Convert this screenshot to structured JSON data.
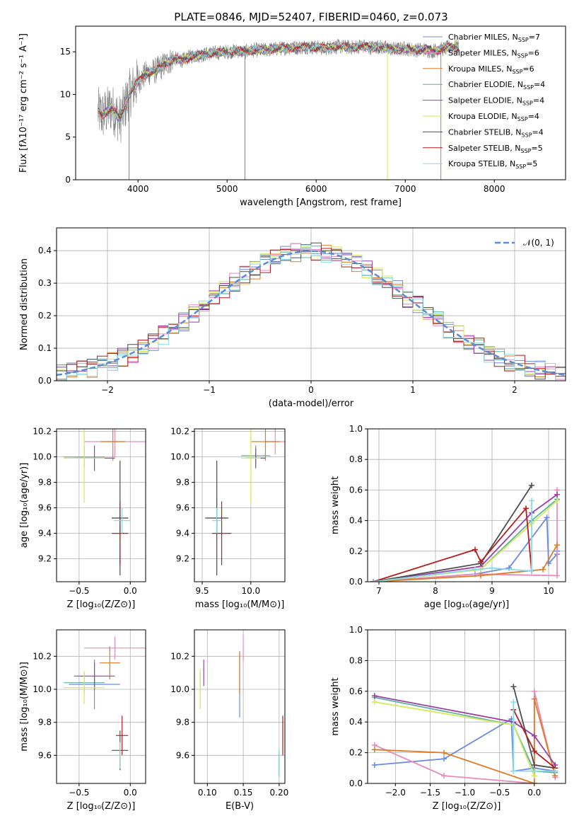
{
  "figure": {
    "title": "PLATE=0846, MJD=52407, FIBERID=0460, z=0.073"
  },
  "colors": {
    "chabrier_miles": "#6a8bdc",
    "salpeter_miles": "#e98abd",
    "kroupa_miles": "#e07a22",
    "chabrier_elodie": "#5fb0a0",
    "salpeter_elodie": "#9a3fa8",
    "kroupa_elodie": "#d2ea5a",
    "chabrier_stelib": "#4d4d4d",
    "salpeter_stelib": "#b51c1c",
    "kroupa_stelib": "#88dbe4",
    "data": "#808080"
  },
  "chart_data": [
    {
      "id": "spectrum",
      "type": "line",
      "title": "PLATE=0846, MJD=52407, FIBERID=0460, z=0.073",
      "xlabel": "wavelength [Angstrom, rest frame]",
      "ylabel": "Flux [fλ10⁻¹⁷ erg cm⁻² s⁻¹ A⁻¹]",
      "xlim": [
        3300,
        8800
      ],
      "ylim": [
        0,
        18
      ],
      "xticks": [
        4000,
        5000,
        6000,
        7000,
        8000
      ],
      "yticks": [
        0,
        5,
        10,
        15
      ],
      "grid": false,
      "legend_position": "right",
      "legend": [
        {
          "key": "chabrier_miles",
          "label": "Chabrier MILES, N",
          "sub": "SSP",
          "suffix": "=7"
        },
        {
          "key": "salpeter_miles",
          "label": "Salpeter MILES, N",
          "sub": "SSP",
          "suffix": "=6"
        },
        {
          "key": "kroupa_miles",
          "label": "Kroupa MILES, N",
          "sub": "SSP",
          "suffix": "=6"
        },
        {
          "key": "chabrier_elodie",
          "label": "Chabrier ELODIE, N",
          "sub": "SSP",
          "suffix": "=4"
        },
        {
          "key": "salpeter_elodie",
          "label": "Salpeter ELODIE, N",
          "sub": "SSP",
          "suffix": "=4"
        },
        {
          "key": "kroupa_elodie",
          "label": "Kroupa ELODIE, N",
          "sub": "SSP",
          "suffix": "=4"
        },
        {
          "key": "chabrier_stelib",
          "label": "Chabrier STELIB, N",
          "sub": "SSP",
          "suffix": "=4"
        },
        {
          "key": "salpeter_stelib",
          "label": "Salpeter STELIB, N",
          "sub": "SSP",
          "suffix": "=5"
        },
        {
          "key": "kroupa_stelib",
          "label": "Kroupa STELIB, N",
          "sub": "SSP",
          "suffix": "=5"
        }
      ],
      "data_curve": {
        "x": [
          3550,
          3600,
          3700,
          3800,
          3900,
          4000,
          4100,
          4200,
          4300,
          4400,
          4500,
          4600,
          4700,
          4800,
          4900,
          5000,
          5100,
          5200,
          5300,
          5400,
          5500,
          5600,
          5700,
          5800,
          5900,
          6000,
          6100,
          6200,
          6300,
          6400,
          6500,
          6600,
          6700,
          6800,
          6900,
          7000,
          7100,
          7200,
          7300,
          7400,
          7500,
          7600
        ],
        "y": [
          8.0,
          7.5,
          8.5,
          7.0,
          10.0,
          11.5,
          12.5,
          12.8,
          13.5,
          14.2,
          14.0,
          14.5,
          14.6,
          14.8,
          14.9,
          15.0,
          15.1,
          15.0,
          15.2,
          15.2,
          15.3,
          15.4,
          15.5,
          15.5,
          15.6,
          15.5,
          15.4,
          15.6,
          15.6,
          15.5,
          15.7,
          15.5,
          15.6,
          15.4,
          15.3,
          15.4,
          15.2,
          15.3,
          15.1,
          15.3,
          15.5,
          15.6
        ]
      },
      "dips": [
        {
          "x": 3900,
          "y": 0
        },
        {
          "x": 5200,
          "y": 0
        },
        {
          "x": 6800,
          "y": 0
        },
        {
          "x": 7400,
          "y": 0
        }
      ]
    },
    {
      "id": "residuals",
      "type": "area",
      "xlabel": "(data-model)/error",
      "ylabel": "Normed distribution",
      "xlim": [
        -2.5,
        2.5
      ],
      "ylim": [
        0,
        0.47
      ],
      "xticks": [
        -2,
        -1,
        0,
        1,
        2
      ],
      "yticks": [
        0.0,
        0.1,
        0.2,
        0.3,
        0.4
      ],
      "grid": true,
      "legend_position": "upper-right",
      "legend": [
        {
          "key": "normal",
          "label": "𝒩(0, 1)"
        }
      ],
      "normal_color": "#5b8bd6"
    },
    {
      "id": "age-vs-Z",
      "type": "scatter",
      "xlabel": "Z [log₁₀(Z/Z⊙)]",
      "ylabel": "age  [log₁₀(age/yr)]",
      "xlim": [
        -0.72,
        0.15
      ],
      "ylim": [
        9.02,
        10.22
      ],
      "xticks": [
        -0.5,
        0.0
      ],
      "yticks": [
        9.2,
        9.4,
        9.6,
        9.8,
        10.0,
        10.2
      ],
      "grid": true,
      "points": [
        {
          "key": "chabrier_miles",
          "x": -0.1,
          "y": 9.52,
          "xerr": 0.08,
          "yerr": 0.1
        },
        {
          "key": "salpeter_miles",
          "x": -0.15,
          "y": 10.12,
          "xerr": 0.3,
          "yerr": 0.12
        },
        {
          "key": "kroupa_miles",
          "x": -0.17,
          "y": 10.12,
          "xerr": 0.12,
          "yerr": 0.15
        },
        {
          "key": "chabrier_elodie",
          "x": -0.45,
          "y": 10.0,
          "xerr": 0.2,
          "yerr": 0.08
        },
        {
          "key": "salpeter_elodie",
          "x": -0.35,
          "y": 9.99,
          "xerr": 0.2,
          "yerr": 0.1
        },
        {
          "key": "kroupa_elodie",
          "x": -0.45,
          "y": 9.99,
          "xerr": 0.2,
          "yerr": 0.35
        },
        {
          "key": "chabrier_stelib",
          "x": -0.1,
          "y": 9.52,
          "xerr": 0.08,
          "yerr": 0.45
        },
        {
          "key": "salpeter_stelib",
          "x": -0.1,
          "y": 9.4,
          "xerr": 0.08,
          "yerr": 0.25
        },
        {
          "key": "kroupa_stelib",
          "x": -0.08,
          "y": 9.5,
          "xerr": 0.08,
          "yerr": 0.1
        }
      ]
    },
    {
      "id": "age-vs-mass",
      "type": "scatter",
      "xlabel": "mass [log₁₀(M/M⊙)]",
      "ylabel": "",
      "xlim": [
        9.42,
        10.35
      ],
      "ylim": [
        9.02,
        10.22
      ],
      "xticks": [
        9.5,
        10.0
      ],
      "yticks": [
        9.2,
        9.4,
        9.6,
        9.8,
        10.0,
        10.2
      ],
      "grid": true,
      "points": [
        {
          "key": "chabrier_miles",
          "x": 9.65,
          "y": 9.52,
          "xerr": 0.1,
          "yerr": 0.15
        },
        {
          "key": "salpeter_miles",
          "x": 10.25,
          "y": 10.12,
          "xerr": 0.1,
          "yerr": 0.1
        },
        {
          "key": "kroupa_miles",
          "x": 10.15,
          "y": 10.12,
          "xerr": 0.15,
          "yerr": 0.15
        },
        {
          "key": "chabrier_elodie",
          "x": 10.05,
          "y": 10.01,
          "xerr": 0.15,
          "yerr": 0.08
        },
        {
          "key": "salpeter_elodie",
          "x": 10.05,
          "y": 9.99,
          "xerr": 0.1,
          "yerr": 0.08
        },
        {
          "key": "kroupa_elodie",
          "x": 10.0,
          "y": 9.99,
          "xerr": 0.1,
          "yerr": 0.35
        },
        {
          "key": "chabrier_stelib",
          "x": 9.65,
          "y": 9.52,
          "xerr": 0.12,
          "yerr": 0.45
        },
        {
          "key": "salpeter_stelib",
          "x": 9.7,
          "y": 9.4,
          "xerr": 0.1,
          "yerr": 0.25
        },
        {
          "key": "kroupa_stelib",
          "x": 9.65,
          "y": 9.5,
          "xerr": 0.05,
          "yerr": 0.1
        }
      ]
    },
    {
      "id": "weight-vs-age",
      "type": "line",
      "xlabel": "age  [log₁₀(age/yr)]",
      "ylabel": "mass weight",
      "xlim": [
        6.8,
        10.3
      ],
      "ylim": [
        0,
        1
      ],
      "xticks": [
        7,
        8,
        9,
        10
      ],
      "yticks": [
        0.0,
        0.2,
        0.4,
        0.6,
        0.8,
        1.0
      ],
      "grid": true,
      "series": [
        {
          "key": "chabrier_miles",
          "x": [
            6.9,
            8.7,
            9.3,
            9.97,
            10.0,
            10.15,
            10.15
          ],
          "y": [
            0.0,
            0.05,
            0.09,
            0.42,
            0.12,
            0.18,
            0.2
          ]
        },
        {
          "key": "salpeter_miles",
          "x": [
            6.9,
            8.7,
            10.15,
            10.15
          ],
          "y": [
            0.0,
            0.05,
            0.04,
            0.6
          ]
        },
        {
          "key": "kroupa_miles",
          "x": [
            6.9,
            8.8,
            9.9,
            10.15
          ],
          "y": [
            0.0,
            0.04,
            0.08,
            0.24
          ]
        },
        {
          "key": "chabrier_elodie",
          "x": [
            6.9,
            8.8,
            9.7,
            10.15
          ],
          "y": [
            0.0,
            0.08,
            0.4,
            0.54
          ]
        },
        {
          "key": "salpeter_elodie",
          "x": [
            6.9,
            8.8,
            9.7,
            10.15
          ],
          "y": [
            0.0,
            0.1,
            0.45,
            0.57
          ]
        },
        {
          "key": "kroupa_elodie",
          "x": [
            6.9,
            8.8,
            9.7,
            10.15
          ],
          "y": [
            0.0,
            0.08,
            0.38,
            0.53
          ]
        },
        {
          "key": "chabrier_stelib",
          "x": [
            6.9,
            8.8,
            9.7
          ],
          "y": [
            0.0,
            0.12,
            0.63
          ]
        },
        {
          "key": "salpeter_stelib",
          "x": [
            6.9,
            8.7,
            8.8,
            9.6,
            9.7
          ],
          "y": [
            0.0,
            0.21,
            0.13,
            0.48,
            0.07
          ]
        },
        {
          "key": "kroupa_stelib",
          "x": [
            6.9,
            8.7,
            9.0,
            9.7,
            9.7
          ],
          "y": [
            0.0,
            0.08,
            0.09,
            0.07,
            0.53
          ]
        }
      ]
    },
    {
      "id": "mass-vs-Z",
      "type": "scatter",
      "xlabel": "Z [log₁₀(Z/Z⊙)]",
      "ylabel": "mass [log₁₀(M/M⊙)]",
      "xlim": [
        -0.72,
        0.15
      ],
      "ylim": [
        9.43,
        10.36
      ],
      "xticks": [
        -0.5,
        0.0
      ],
      "yticks": [
        9.6,
        9.8,
        10.0,
        10.2
      ],
      "grid": true,
      "points": [
        {
          "key": "chabrier_miles",
          "x": -0.35,
          "y": 10.03,
          "xerr": 0.25,
          "yerr": 0.15
        },
        {
          "key": "salpeter_miles",
          "x": -0.15,
          "y": 10.25,
          "xerr": 0.3,
          "yerr": 0.07
        },
        {
          "key": "kroupa_miles",
          "x": -0.2,
          "y": 10.16,
          "xerr": 0.1,
          "yerr": 0.1
        },
        {
          "key": "chabrier_elodie",
          "x": -0.45,
          "y": 10.04,
          "xerr": 0.2,
          "yerr": 0.06
        },
        {
          "key": "salpeter_elodie",
          "x": -0.35,
          "y": 10.08,
          "xerr": 0.2,
          "yerr": 0.08
        },
        {
          "key": "kroupa_elodie",
          "x": -0.45,
          "y": 10.01,
          "xerr": 0.2,
          "yerr": 0.1
        },
        {
          "key": "chabrier_stelib",
          "x": -0.1,
          "y": 9.63,
          "xerr": 0.08,
          "yerr": 0.12
        },
        {
          "key": "salpeter_stelib",
          "x": -0.08,
          "y": 9.72,
          "xerr": 0.06,
          "yerr": 0.12
        },
        {
          "key": "kroupa_stelib",
          "x": -0.1,
          "y": 9.6,
          "xerr": 0.06,
          "yerr": 0.08
        }
      ]
    },
    {
      "id": "mass-vs-ebv",
      "type": "scatter",
      "xlabel": "E(B-V)",
      "ylabel": "",
      "xlim": [
        0.082,
        0.208
      ],
      "ylim": [
        9.43,
        10.36
      ],
      "xticks": [
        0.1,
        0.15,
        0.2
      ],
      "xtick_labels": [
        "0.10",
        "0.15",
        "0.20"
      ],
      "yticks": [
        9.6,
        9.8,
        10.0,
        10.2
      ],
      "grid": true,
      "points": [
        {
          "key": "chabrier_miles",
          "x": 0.145,
          "y": 10.03,
          "xerr": 0.0,
          "yerr": 0.2
        },
        {
          "key": "salpeter_miles",
          "x": 0.15,
          "y": 10.25,
          "xerr": 0.0,
          "yerr": 0.08
        },
        {
          "key": "kroupa_miles",
          "x": 0.145,
          "y": 10.1,
          "xerr": 0.0,
          "yerr": 0.13
        },
        {
          "key": "chabrier_elodie",
          "x": 0.09,
          "y": 10.04,
          "xerr": 0.0,
          "yerr": 0.06
        },
        {
          "key": "salpeter_elodie",
          "x": 0.095,
          "y": 10.1,
          "xerr": 0.0,
          "yerr": 0.08
        },
        {
          "key": "kroupa_elodie",
          "x": 0.09,
          "y": 10.0,
          "xerr": 0.0,
          "yerr": 0.12
        },
        {
          "key": "chabrier_stelib",
          "x": 0.2,
          "y": 9.55,
          "xerr": 0.0,
          "yerr": 0.08
        },
        {
          "key": "salpeter_stelib",
          "x": 0.205,
          "y": 9.72,
          "xerr": 0.0,
          "yerr": 0.12
        },
        {
          "key": "kroupa_stelib",
          "x": 0.2,
          "y": 9.55,
          "xerr": 0.0,
          "yerr": 0.08
        }
      ]
    },
    {
      "id": "weight-vs-Z",
      "type": "line",
      "xlabel": "Z [log₁₀(Z/Z⊙)]",
      "ylabel": "mass weight",
      "xlim": [
        -2.4,
        0.45
      ],
      "ylim": [
        0,
        1
      ],
      "xticks": [
        -2.0,
        -1.5,
        -1.0,
        -0.5,
        0.0
      ],
      "yticks": [
        0.0,
        0.2,
        0.4,
        0.6,
        0.8,
        1.0
      ],
      "grid": true,
      "series": [
        {
          "key": "chabrier_miles",
          "x": [
            -2.3,
            -1.3,
            -0.33,
            -0.3,
            0.0,
            0.3
          ],
          "y": [
            0.12,
            0.16,
            0.42,
            0.08,
            0.1,
            0.08
          ]
        },
        {
          "key": "salpeter_miles",
          "x": [
            -2.3,
            -1.3,
            0.0,
            0.0,
            0.3
          ],
          "y": [
            0.25,
            0.05,
            0.0,
            0.6,
            0.04
          ]
        },
        {
          "key": "kroupa_miles",
          "x": [
            -2.3,
            -1.3,
            0.0,
            0.0,
            0.3
          ],
          "y": [
            0.22,
            0.2,
            0.0,
            0.55,
            0.05
          ]
        },
        {
          "key": "chabrier_elodie",
          "x": [
            -2.3,
            -0.3,
            0.0,
            0.3
          ],
          "y": [
            0.56,
            0.38,
            0.08,
            0.07
          ]
        },
        {
          "key": "salpeter_elodie",
          "x": [
            -2.3,
            -0.3,
            0.0,
            0.3
          ],
          "y": [
            0.57,
            0.4,
            0.31,
            0.12
          ]
        },
        {
          "key": "kroupa_elodie",
          "x": [
            -2.3,
            -0.3,
            0.0
          ],
          "y": [
            0.53,
            0.38,
            0.05
          ]
        },
        {
          "key": "chabrier_stelib",
          "x": [
            -0.3,
            0.0,
            0.3
          ],
          "y": [
            0.63,
            0.12,
            0.1
          ]
        },
        {
          "key": "salpeter_stelib",
          "x": [
            -0.3,
            0.0,
            0.3
          ],
          "y": [
            0.48,
            0.21,
            0.1
          ]
        },
        {
          "key": "kroupa_stelib",
          "x": [
            -0.3,
            -0.3,
            0.0,
            0.3
          ],
          "y": [
            0.53,
            0.08,
            0.08,
            0.08
          ]
        }
      ]
    }
  ]
}
